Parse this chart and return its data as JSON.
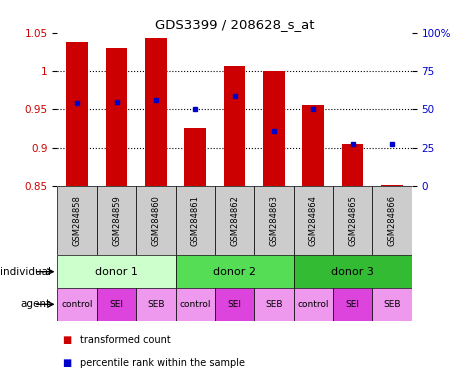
{
  "title": "GDS3399 / 208628_s_at",
  "samples": [
    "GSM284858",
    "GSM284859",
    "GSM284860",
    "GSM284861",
    "GSM284862",
    "GSM284863",
    "GSM284864",
    "GSM284865",
    "GSM284866"
  ],
  "bar_tops": [
    1.038,
    1.03,
    1.043,
    0.926,
    1.006,
    1.0,
    0.956,
    0.905,
    0.851
  ],
  "bar_base": 0.85,
  "percentile_vals": [
    0.958,
    0.96,
    0.962,
    0.95,
    0.968,
    0.922,
    0.95,
    0.905,
    0.905
  ],
  "ylim_left": [
    0.85,
    1.05
  ],
  "ylim_right": [
    0,
    100
  ],
  "yticks_left": [
    0.85,
    0.9,
    0.95,
    1.0,
    1.05
  ],
  "ytick_labels_left": [
    "0.85",
    "0.9",
    "0.95",
    "1",
    "1.05"
  ],
  "yticks_right": [
    0,
    25,
    50,
    75,
    100
  ],
  "ytick_labels_right": [
    "0",
    "25",
    "50",
    "75",
    "100%"
  ],
  "bar_color": "#cc0000",
  "dot_color": "#0000cc",
  "bar_width": 0.55,
  "individual_labels": [
    "donor 1",
    "donor 2",
    "donor 3"
  ],
  "individual_colors": [
    "#ccffcc",
    "#55dd55",
    "#33bb33"
  ],
  "agent_labels": [
    "control",
    "SEI",
    "SEB",
    "control",
    "SEI",
    "SEB",
    "control",
    "SEI",
    "SEB"
  ],
  "agent_sei_color": "#dd44dd",
  "agent_other_color": "#ee99ee",
  "sample_bg_color": "#cccccc",
  "background_color": "#ffffff",
  "label_individual": "individual",
  "label_agent": "agent",
  "legend_red": "transformed count",
  "legend_blue": "percentile rank within the sample"
}
